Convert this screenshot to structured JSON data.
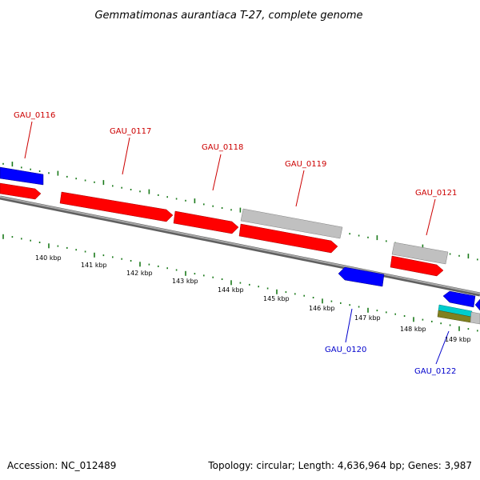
{
  "title": "Gemmatimonas aurantiaca T-27, complete genome",
  "footer": {
    "accession": "Accession: NC_012489",
    "summary": "Topology: circular; Length: 4,636,964 bp; Genes: 3,987"
  },
  "colors": {
    "forward_label": "#cc0000",
    "reverse_label": "#0000cc",
    "tick": "#1a7a1a",
    "backbone": "#808080",
    "cds_red": "#ff0000",
    "cds_blue": "#0000ff",
    "cds_gray": "#c0c0c0",
    "rna_cyan": "#00cccc",
    "rna_olive": "#808020"
  },
  "scale_labels": [
    "140 kbp",
    "141 kbp",
    "142 kbp",
    "143 kbp",
    "144 kbp",
    "145 kbp",
    "146 kbp",
    "147 kbp",
    "148 kbp",
    "149 kbp"
  ],
  "gene_labels": [
    {
      "text": "GAU_0116",
      "strand": "forward"
    },
    {
      "text": "GAU_0117",
      "strand": "forward"
    },
    {
      "text": "GAU_0118",
      "strand": "forward"
    },
    {
      "text": "GAU_0119",
      "strand": "forward"
    },
    {
      "text": "GAU_0121",
      "strand": "forward"
    },
    {
      "text": "GAU_0120",
      "strand": "reverse"
    },
    {
      "text": "GAU_0122",
      "strand": "reverse"
    }
  ]
}
